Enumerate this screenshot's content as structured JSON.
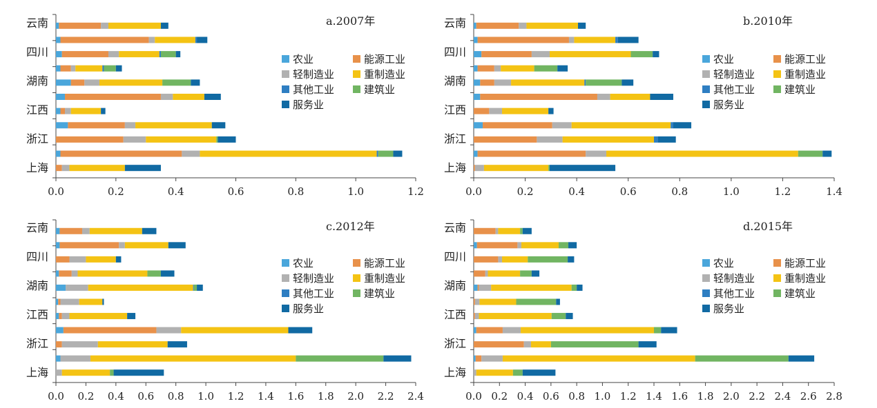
{
  "colors": {
    "农业": "#4aa6db",
    "能源工业": "#e8914a",
    "轻制造业": "#b1b1b1",
    "重制造业": "#f4c314",
    "其他工业": "#2e7ec2",
    "建筑业": "#71b562",
    "服务业": "#116aa3"
  },
  "chart_data": [
    {
      "type": "bar",
      "orientation": "horizontal",
      "stacked": true,
      "title": "a.2007年",
      "legend": [
        "农业",
        "能源工业",
        "轻制造业",
        "重制造业",
        "其他工业",
        "建筑业",
        "服务业"
      ],
      "legend_position": "right",
      "xlim": [
        0,
        1.2
      ],
      "xticks": [
        "0.0",
        "0.2",
        "0.4",
        "0.6",
        "0.8",
        "1.0",
        "1.2"
      ],
      "category_labels": [
        "云南",
        "四川",
        "湖南",
        "江西",
        "浙江",
        "上海"
      ],
      "bars": [
        [
          0.01,
          0.14,
          0.025,
          0.175,
          0.0,
          0.0,
          0.025
        ],
        [
          0.015,
          0.295,
          0.02,
          0.135,
          0.005,
          0.0,
          0.035
        ],
        [
          0.02,
          0.155,
          0.035,
          0.135,
          0.005,
          0.05,
          0.015
        ],
        [
          0.015,
          0.035,
          0.015,
          0.09,
          0.005,
          0.04,
          0.02
        ],
        [
          0.05,
          0.045,
          0.05,
          0.21,
          0.0,
          0.095,
          0.03
        ],
        [
          0.03,
          0.32,
          0.04,
          0.105,
          0.0,
          0.0,
          0.055
        ],
        [
          0.015,
          0.015,
          0.02,
          0.1,
          0.0,
          0.0,
          0.015
        ],
        [
          0.04,
          0.19,
          0.035,
          0.255,
          0.0,
          0.0,
          0.045
        ],
        [
          0.0,
          0.225,
          0.075,
          0.235,
          0.0,
          0.005,
          0.06
        ],
        [
          0.015,
          0.405,
          0.06,
          0.59,
          0.005,
          0.05,
          0.03
        ],
        [
          0.0,
          0.02,
          0.025,
          0.185,
          0.0,
          0.0,
          0.12
        ]
      ]
    },
    {
      "type": "bar",
      "orientation": "horizontal",
      "stacked": true,
      "title": "b.2010年",
      "legend": [
        "农业",
        "能源工业",
        "轻制造业",
        "重制造业",
        "其他工业",
        "建筑业",
        "服务业"
      ],
      "legend_position": "right",
      "xlim": [
        0,
        1.4
      ],
      "xticks": [
        "0.0",
        "0.2",
        "0.4",
        "0.6",
        "0.8",
        "1.0",
        "1.2",
        "1.4"
      ],
      "category_labels": [
        "云南",
        "四川",
        "湖南",
        "江西",
        "浙江",
        "上海"
      ],
      "bars": [
        [
          0.01,
          0.165,
          0.03,
          0.2,
          0.0,
          0.0,
          0.03
        ],
        [
          0.015,
          0.355,
          0.02,
          0.16,
          0.01,
          0.0,
          0.08
        ],
        [
          0.03,
          0.195,
          0.07,
          0.315,
          0.0,
          0.085,
          0.025
        ],
        [
          0.015,
          0.065,
          0.025,
          0.13,
          0.0,
          0.09,
          0.04
        ],
        [
          0.025,
          0.055,
          0.065,
          0.285,
          0.005,
          0.14,
          0.045
        ],
        [
          0.025,
          0.455,
          0.05,
          0.155,
          0.0,
          0.0,
          0.09
        ],
        [
          0.0,
          0.06,
          0.05,
          0.18,
          0.0,
          0.0,
          0.02
        ],
        [
          0.035,
          0.27,
          0.075,
          0.385,
          0.01,
          0.0,
          0.07
        ],
        [
          0.0,
          0.245,
          0.1,
          0.355,
          0.015,
          0.0,
          0.07
        ],
        [
          0.015,
          0.42,
          0.08,
          0.745,
          0.0,
          0.095,
          0.035
        ],
        [
          0.0,
          0.005,
          0.035,
          0.25,
          0.0,
          0.005,
          0.255
        ]
      ]
    },
    {
      "type": "bar",
      "orientation": "horizontal",
      "stacked": true,
      "title": "c.2012年",
      "legend": [
        "农业",
        "能源工业",
        "轻制造业",
        "重制造业",
        "其他工业",
        "建筑业",
        "服务业"
      ],
      "legend_position": "right",
      "xlim": [
        0,
        2.4
      ],
      "xticks": [
        "0.0",
        "0.2",
        "0.4",
        "0.6",
        "0.8",
        "1.0",
        "1.2",
        "1.4",
        "1.6",
        "1.8",
        "2.0",
        "2.2",
        "2.4"
      ],
      "category_labels": [
        "云南",
        "四川",
        "湖南",
        "江西",
        "浙江",
        "上海"
      ],
      "bars": [
        [
          0.025,
          0.15,
          0.05,
          0.35,
          0.0,
          0.0,
          0.095
        ],
        [
          0.025,
          0.395,
          0.04,
          0.29,
          0.0,
          0.0,
          0.115
        ],
        [
          0.0,
          0.09,
          0.11,
          0.2,
          0.0,
          0.0,
          0.035
        ],
        [
          0.02,
          0.085,
          0.04,
          0.465,
          0.0,
          0.09,
          0.09
        ],
        [
          0.065,
          0.0,
          0.15,
          0.7,
          0.005,
          0.02,
          0.04
        ],
        [
          0.015,
          0.015,
          0.125,
          0.155,
          0.0,
          0.0,
          0.01
        ],
        [
          0.02,
          0.02,
          0.05,
          0.385,
          0.0,
          0.0,
          0.055
        ],
        [
          0.05,
          0.62,
          0.165,
          0.715,
          0.0,
          0.0,
          0.16
        ],
        [
          0.0,
          0.04,
          0.24,
          0.465,
          0.0,
          0.0,
          0.13
        ],
        [
          0.03,
          0.0,
          0.2,
          1.37,
          0.0,
          0.585,
          0.185
        ],
        [
          0.0,
          0.0,
          0.04,
          0.32,
          0.0,
          0.025,
          0.335
        ]
      ]
    },
    {
      "type": "bar",
      "orientation": "horizontal",
      "stacked": true,
      "title": "d.2015年",
      "legend": [
        "农业",
        "能源工业",
        "轻制造业",
        "重制造业",
        "其他工业",
        "建筑业",
        "服务业"
      ],
      "legend_position": "right",
      "xlim": [
        0,
        2.8
      ],
      "xticks": [
        "0.0",
        "0.2",
        "0.4",
        "0.6",
        "0.8",
        "1.0",
        "1.2",
        "1.4",
        "1.6",
        "1.8",
        "2.0",
        "2.2",
        "2.4",
        "2.6",
        "2.8"
      ],
      "category_labels": [
        "云南",
        "四川",
        "湖南",
        "江西",
        "浙江",
        "上海"
      ],
      "bars": [
        [
          0.0,
          0.17,
          0.02,
          0.17,
          0.0,
          0.02,
          0.07
        ],
        [
          0.025,
          0.315,
          0.03,
          0.29,
          0.0,
          0.075,
          0.065
        ],
        [
          0.0,
          0.19,
          0.03,
          0.2,
          0.0,
          0.31,
          0.05
        ],
        [
          0.0,
          0.09,
          0.02,
          0.25,
          0.0,
          0.09,
          0.06
        ],
        [
          0.03,
          0.01,
          0.095,
          0.625,
          0.0,
          0.04,
          0.045
        ],
        [
          0.0,
          0.01,
          0.035,
          0.285,
          0.0,
          0.31,
          0.03
        ],
        [
          0.0,
          0.01,
          0.03,
          0.565,
          0.0,
          0.11,
          0.055
        ],
        [
          0.02,
          0.205,
          0.14,
          1.035,
          0.0,
          0.055,
          0.125
        ],
        [
          0.0,
          0.39,
          0.055,
          0.155,
          0.0,
          0.68,
          0.14
        ],
        [
          0.015,
          0.045,
          0.165,
          1.495,
          0.0,
          0.725,
          0.2
        ],
        [
          0.0,
          0.0,
          0.02,
          0.285,
          0.0,
          0.075,
          0.255
        ]
      ]
    }
  ]
}
